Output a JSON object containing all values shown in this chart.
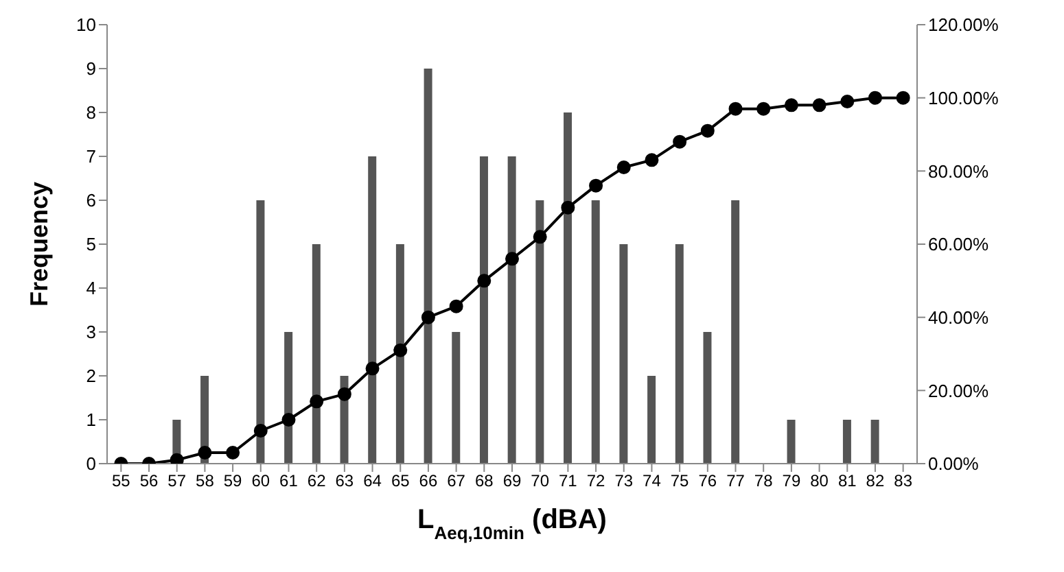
{
  "chart_data": {
    "type": "bar",
    "xlabel": "L$_{Aeq,10min}$ (dBA)",
    "ylabel": "Frequency",
    "categories": [
      "55",
      "56",
      "57",
      "58",
      "59",
      "60",
      "61",
      "62",
      "63",
      "64",
      "65",
      "66",
      "67",
      "68",
      "69",
      "70",
      "71",
      "72",
      "73",
      "74",
      "75",
      "76",
      "77",
      "78",
      "79",
      "80",
      "81",
      "82",
      "83"
    ],
    "series": [
      {
        "color": "#555555",
        "values": [
          0,
          0,
          1,
          2,
          0,
          6,
          3,
          5,
          2,
          7,
          5,
          9,
          3,
          7,
          7,
          6,
          8,
          6,
          5,
          2,
          5,
          3,
          6,
          0,
          1,
          0,
          1,
          1,
          0
        ]
      },
      {
        "type": "line",
        "axis": "y2",
        "color": "#000000",
        "marker": "circle",
        "values": [
          0,
          0,
          1,
          3,
          3,
          9,
          12,
          17,
          19,
          26,
          31,
          40,
          43,
          50,
          56,
          62,
          70,
          76,
          81,
          83,
          88,
          91,
          97,
          97,
          98,
          98,
          99,
          100,
          100
        ]
      }
    ],
    "ylim": [
      0,
      10
    ],
    "yticks": [
      0,
      1,
      2,
      3,
      4,
      5,
      6,
      7,
      8,
      9,
      10
    ],
    "y2lim": [
      0,
      120
    ],
    "y2ticks": [
      {
        "value": 0,
        "label": "0.00%"
      },
      {
        "value": 20,
        "label": "20.00%"
      },
      {
        "value": 40,
        "label": "40.00%"
      },
      {
        "value": 60,
        "label": "60.00%"
      },
      {
        "value": 80,
        "label": "80.00%"
      },
      {
        "value": 100,
        "label": "100.00%"
      },
      {
        "value": 120,
        "label": "120.00%"
      }
    ],
    "grid": false,
    "legend": false
  }
}
